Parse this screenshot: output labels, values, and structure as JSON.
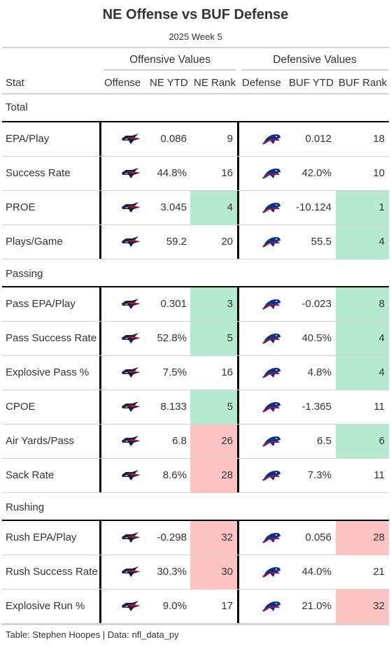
{
  "title": "NE Offense vs BUF Defense",
  "subtitle": "2025 Week 5",
  "spanners": {
    "offense": "Offensive Values",
    "defense": "Defensive Values"
  },
  "columns": [
    "Stat",
    "Offense",
    "NE YTD",
    "NE Rank",
    "Defense",
    "BUF YTD",
    "BUF Rank"
  ],
  "colors": {
    "good": "#b5ead0",
    "bad": "#fdc4c4",
    "patriots_navy": "#0c2340",
    "patriots_red": "#c8102e",
    "bills_blue": "#00338d",
    "bills_red": "#c60c30"
  },
  "groups": [
    {
      "name": "Total",
      "rows": [
        {
          "stat": "EPA/Play",
          "off_logo": "patriots-logo-icon",
          "ne_ytd": "0.086",
          "ne_rank": "9",
          "ne_rank_tier": "none",
          "def_logo": "bills-logo-icon",
          "buf_ytd": "0.012",
          "buf_rank": "18",
          "buf_rank_tier": "none"
        },
        {
          "stat": "Success Rate",
          "off_logo": "patriots-logo-icon",
          "ne_ytd": "44.8%",
          "ne_rank": "16",
          "ne_rank_tier": "none",
          "def_logo": "bills-logo-icon",
          "buf_ytd": "42.0%",
          "buf_rank": "10",
          "buf_rank_tier": "none"
        },
        {
          "stat": "PROE",
          "off_logo": "patriots-logo-icon",
          "ne_ytd": "3.045",
          "ne_rank": "4",
          "ne_rank_tier": "good",
          "def_logo": "bills-logo-icon",
          "buf_ytd": "-10.124",
          "buf_rank": "1",
          "buf_rank_tier": "good"
        },
        {
          "stat": "Plays/Game",
          "off_logo": "patriots-logo-icon",
          "ne_ytd": "59.2",
          "ne_rank": "20",
          "ne_rank_tier": "none",
          "def_logo": "bills-logo-icon",
          "buf_ytd": "55.5",
          "buf_rank": "4",
          "buf_rank_tier": "good"
        }
      ]
    },
    {
      "name": "Passing",
      "rows": [
        {
          "stat": "Pass EPA/Play",
          "off_logo": "patriots-logo-icon",
          "ne_ytd": "0.301",
          "ne_rank": "3",
          "ne_rank_tier": "good",
          "def_logo": "bills-logo-icon",
          "buf_ytd": "-0.023",
          "buf_rank": "8",
          "buf_rank_tier": "good"
        },
        {
          "stat": "Pass Success Rate",
          "off_logo": "patriots-logo-icon",
          "ne_ytd": "52.8%",
          "ne_rank": "5",
          "ne_rank_tier": "good",
          "def_logo": "bills-logo-icon",
          "buf_ytd": "40.5%",
          "buf_rank": "4",
          "buf_rank_tier": "good"
        },
        {
          "stat": "Explosive Pass %",
          "off_logo": "patriots-logo-icon",
          "ne_ytd": "7.5%",
          "ne_rank": "16",
          "ne_rank_tier": "none",
          "def_logo": "bills-logo-icon",
          "buf_ytd": "4.8%",
          "buf_rank": "4",
          "buf_rank_tier": "good"
        },
        {
          "stat": "CPOE",
          "off_logo": "patriots-logo-icon",
          "ne_ytd": "8.133",
          "ne_rank": "5",
          "ne_rank_tier": "good",
          "def_logo": "bills-logo-icon",
          "buf_ytd": "-1.365",
          "buf_rank": "11",
          "buf_rank_tier": "none"
        },
        {
          "stat": "Air Yards/Pass",
          "off_logo": "patriots-logo-icon",
          "ne_ytd": "6.8",
          "ne_rank": "26",
          "ne_rank_tier": "bad",
          "def_logo": "bills-logo-icon",
          "buf_ytd": "6.5",
          "buf_rank": "6",
          "buf_rank_tier": "good"
        },
        {
          "stat": "Sack Rate",
          "off_logo": "patriots-logo-icon",
          "ne_ytd": "8.6%",
          "ne_rank": "28",
          "ne_rank_tier": "bad",
          "def_logo": "bills-logo-icon",
          "buf_ytd": "7.3%",
          "buf_rank": "11",
          "buf_rank_tier": "none"
        }
      ]
    },
    {
      "name": "Rushing",
      "rows": [
        {
          "stat": "Rush EPA/Play",
          "off_logo": "patriots-logo-icon",
          "ne_ytd": "-0.298",
          "ne_rank": "32",
          "ne_rank_tier": "bad",
          "def_logo": "bills-logo-icon",
          "buf_ytd": "0.056",
          "buf_rank": "28",
          "buf_rank_tier": "bad"
        },
        {
          "stat": "Rush Success Rate",
          "off_logo": "patriots-logo-icon",
          "ne_ytd": "30.3%",
          "ne_rank": "30",
          "ne_rank_tier": "bad",
          "def_logo": "bills-logo-icon",
          "buf_ytd": "44.0%",
          "buf_rank": "21",
          "buf_rank_tier": "none"
        },
        {
          "stat": "Explosive Run %",
          "off_logo": "patriots-logo-icon",
          "ne_ytd": "9.0%",
          "ne_rank": "17",
          "ne_rank_tier": "none",
          "def_logo": "bills-logo-icon",
          "buf_ytd": "21.0%",
          "buf_rank": "32",
          "buf_rank_tier": "bad"
        }
      ]
    }
  ],
  "source_note": "Table: Stephen Hoopes | Data: nfl_data_py"
}
